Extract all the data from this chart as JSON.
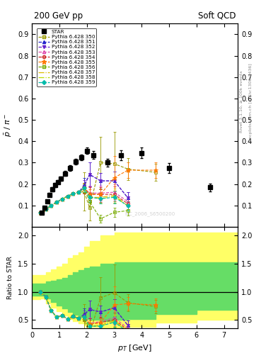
{
  "title_left": "200 GeV pp",
  "title_right": "Soft QCD",
  "ylabel_main": "$\\bar{p}$ / $\\pi^{-}$",
  "ylabel_ratio": "Ratio to STAR",
  "xlabel": "$p_T$ [GeV]",
  "right_label": "Rivet 3.1.10, ≥ 100k events",
  "right_label2": "mcplots.cern.ch [arXiv:1306.3436]",
  "ylim_main": [
    0.0,
    0.95
  ],
  "ylim_ratio": [
    0.35,
    2.15
  ],
  "yticks_main": [
    0.1,
    0.2,
    0.3,
    0.4,
    0.5,
    0.6,
    0.7,
    0.8,
    0.9
  ],
  "yticks_ratio": [
    0.5,
    1.0,
    1.5,
    2.0
  ],
  "xlim": [
    0.0,
    7.5
  ],
  "star_x": [
    0.35,
    0.45,
    0.55,
    0.65,
    0.75,
    0.85,
    0.95,
    1.05,
    1.2,
    1.4,
    1.6,
    1.8,
    2.0,
    2.25,
    2.75,
    3.25,
    4.0,
    5.0,
    6.5
  ],
  "star_y": [
    0.065,
    0.09,
    0.12,
    0.15,
    0.175,
    0.195,
    0.21,
    0.225,
    0.25,
    0.275,
    0.305,
    0.325,
    0.355,
    0.335,
    0.3,
    0.335,
    0.345,
    0.275,
    0.185
  ],
  "star_yerr": [
    0.005,
    0.006,
    0.007,
    0.008,
    0.009,
    0.009,
    0.009,
    0.01,
    0.011,
    0.012,
    0.013,
    0.014,
    0.015,
    0.018,
    0.018,
    0.022,
    0.025,
    0.022,
    0.018
  ],
  "band_x": [
    0.0,
    0.3,
    0.5,
    0.7,
    0.9,
    1.1,
    1.3,
    1.5,
    1.7,
    1.9,
    2.1,
    2.5,
    3.0,
    3.5,
    4.5,
    6.0,
    7.5
  ],
  "band_yellow_low": [
    0.87,
    0.88,
    0.8,
    0.72,
    0.65,
    0.58,
    0.52,
    0.48,
    0.44,
    0.4,
    0.38,
    0.35,
    0.35,
    0.38,
    0.45,
    0.5,
    0.5
  ],
  "band_yellow_high": [
    1.3,
    1.3,
    1.35,
    1.4,
    1.45,
    1.5,
    1.6,
    1.65,
    1.7,
    1.8,
    1.9,
    2.0,
    2.05,
    2.05,
    2.05,
    2.05,
    2.05
  ],
  "band_green_low": [
    0.93,
    0.93,
    0.88,
    0.82,
    0.76,
    0.7,
    0.64,
    0.59,
    0.55,
    0.52,
    0.5,
    0.48,
    0.5,
    0.52,
    0.6,
    0.68,
    0.68
  ],
  "band_green_high": [
    1.15,
    1.15,
    1.18,
    1.2,
    1.22,
    1.25,
    1.3,
    1.35,
    1.38,
    1.42,
    1.45,
    1.5,
    1.52,
    1.52,
    1.52,
    1.52,
    1.52
  ],
  "pythia_lines": [
    {
      "label": "Pythia 6.428 350",
      "color": "#999900",
      "linestyle": "--",
      "marker": "s",
      "markerfacecolor": "none",
      "x": [
        0.3,
        0.5,
        0.7,
        0.9,
        1.1,
        1.3,
        1.5,
        1.7,
        1.9,
        2.1,
        2.5,
        3.0,
        3.5,
        4.5
      ],
      "y": [
        0.065,
        0.082,
        0.1,
        0.116,
        0.13,
        0.144,
        0.155,
        0.161,
        0.165,
        0.09,
        0.3,
        0.295,
        0.27,
        0.255
      ],
      "yerr": [
        0.002,
        0.003,
        0.003,
        0.004,
        0.004,
        0.005,
        0.005,
        0.006,
        0.09,
        0.06,
        0.12,
        0.15,
        0.05,
        0.04
      ]
    },
    {
      "label": "Pythia 6.428 351",
      "color": "#2222cc",
      "linestyle": "--",
      "marker": "^",
      "markerfacecolor": "#2222cc",
      "x": [
        0.3,
        0.5,
        0.7,
        0.9,
        1.1,
        1.3,
        1.5,
        1.7,
        1.9,
        2.1,
        2.5,
        3.0,
        3.5
      ],
      "y": [
        0.065,
        0.082,
        0.1,
        0.116,
        0.13,
        0.144,
        0.155,
        0.161,
        0.195,
        0.245,
        0.215,
        0.215,
        0.135
      ],
      "yerr": [
        0.002,
        0.003,
        0.003,
        0.004,
        0.004,
        0.005,
        0.005,
        0.006,
        0.035,
        0.055,
        0.038,
        0.045,
        0.028
      ]
    },
    {
      "label": "Pythia 6.428 352",
      "color": "#6622cc",
      "linestyle": "--",
      "marker": "v",
      "markerfacecolor": "#6622cc",
      "x": [
        0.3,
        0.5,
        0.7,
        0.9,
        1.1,
        1.3,
        1.5,
        1.7,
        1.9,
        2.1,
        2.5,
        3.0,
        3.5
      ],
      "y": [
        0.065,
        0.082,
        0.1,
        0.116,
        0.13,
        0.144,
        0.155,
        0.161,
        0.188,
        0.245,
        0.215,
        0.215,
        0.135
      ],
      "yerr": [
        0.002,
        0.003,
        0.003,
        0.004,
        0.004,
        0.005,
        0.005,
        0.006,
        0.03,
        0.055,
        0.038,
        0.045,
        0.028
      ]
    },
    {
      "label": "Pythia 6.428 353",
      "color": "#dd44aa",
      "linestyle": "--",
      "marker": "^",
      "markerfacecolor": "none",
      "x": [
        0.3,
        0.5,
        0.7,
        0.9,
        1.1,
        1.3,
        1.5,
        1.7,
        1.9,
        2.1,
        2.5,
        3.0,
        3.5
      ],
      "y": [
        0.065,
        0.082,
        0.1,
        0.116,
        0.13,
        0.144,
        0.155,
        0.161,
        0.182,
        0.158,
        0.158,
        0.162,
        0.118
      ],
      "yerr": [
        0.002,
        0.003,
        0.003,
        0.004,
        0.004,
        0.005,
        0.005,
        0.006,
        0.025,
        0.035,
        0.035,
        0.038,
        0.025
      ]
    },
    {
      "label": "Pythia 6.428 354",
      "color": "#cc2222",
      "linestyle": "--",
      "marker": "o",
      "markerfacecolor": "none",
      "x": [
        0.3,
        0.5,
        0.7,
        0.9,
        1.1,
        1.3,
        1.5,
        1.7,
        1.9,
        2.1,
        2.5,
        3.0,
        3.5
      ],
      "y": [
        0.065,
        0.082,
        0.1,
        0.116,
        0.13,
        0.144,
        0.155,
        0.161,
        0.182,
        0.152,
        0.152,
        0.152,
        0.108
      ],
      "yerr": [
        0.002,
        0.003,
        0.003,
        0.004,
        0.004,
        0.005,
        0.005,
        0.006,
        0.025,
        0.035,
        0.035,
        0.038,
        0.025
      ]
    },
    {
      "label": "Pythia 6.428 355",
      "color": "#ff7700",
      "linestyle": "--",
      "marker": "*",
      "markerfacecolor": "#ff7700",
      "x": [
        0.3,
        0.5,
        0.7,
        0.9,
        1.1,
        1.3,
        1.5,
        1.7,
        1.9,
        2.1,
        2.5,
        3.0,
        3.5,
        4.5
      ],
      "y": [
        0.065,
        0.082,
        0.1,
        0.116,
        0.13,
        0.144,
        0.155,
        0.161,
        0.182,
        0.152,
        0.152,
        0.23,
        0.265,
        0.265
      ],
      "yerr": [
        0.002,
        0.003,
        0.003,
        0.004,
        0.004,
        0.005,
        0.005,
        0.006,
        0.02,
        0.025,
        0.025,
        0.1,
        0.038,
        0.038
      ]
    },
    {
      "label": "Pythia 6.428 356",
      "color": "#77aa00",
      "linestyle": "--",
      "marker": "s",
      "markerfacecolor": "none",
      "x": [
        0.3,
        0.5,
        0.7,
        0.9,
        1.1,
        1.3,
        1.5,
        1.7,
        1.9,
        2.1,
        2.5,
        3.0,
        3.5
      ],
      "y": [
        0.065,
        0.082,
        0.1,
        0.116,
        0.13,
        0.144,
        0.155,
        0.161,
        0.182,
        0.118,
        0.038,
        0.068,
        0.076
      ],
      "yerr": [
        0.002,
        0.003,
        0.003,
        0.004,
        0.004,
        0.005,
        0.005,
        0.006,
        0.022,
        0.028,
        0.018,
        0.022,
        0.022
      ]
    },
    {
      "label": "Pythia 6.428 357",
      "color": "#ddbb00",
      "linestyle": "-.",
      "marker": "None",
      "markerfacecolor": "#ddbb00",
      "x": [
        0.3,
        0.5,
        0.7,
        0.9,
        1.1,
        1.3,
        1.5,
        1.7,
        1.9,
        2.1,
        2.5,
        3.0,
        3.5
      ],
      "y": [
        0.065,
        0.082,
        0.1,
        0.116,
        0.13,
        0.144,
        0.155,
        0.161,
        0.182,
        0.138,
        0.138,
        0.148,
        0.098
      ],
      "yerr": [
        0.002,
        0.003,
        0.003,
        0.004,
        0.004,
        0.005,
        0.005,
        0.006,
        0.018,
        0.025,
        0.025,
        0.03,
        0.022
      ]
    },
    {
      "label": "Pythia 6.428 358",
      "color": "#bbdd00",
      "linestyle": "-.",
      "marker": "None",
      "markerfacecolor": "#bbdd00",
      "x": [
        0.3,
        0.5,
        0.7,
        0.9,
        1.1,
        1.3,
        1.5,
        1.7,
        1.9,
        2.1,
        2.5,
        3.0,
        3.5
      ],
      "y": [
        0.065,
        0.082,
        0.1,
        0.116,
        0.13,
        0.144,
        0.155,
        0.161,
        0.182,
        0.138,
        0.132,
        0.142,
        0.098
      ],
      "yerr": [
        0.002,
        0.003,
        0.003,
        0.004,
        0.004,
        0.005,
        0.005,
        0.006,
        0.018,
        0.022,
        0.022,
        0.028,
        0.022
      ]
    },
    {
      "label": "Pythia 6.428 359",
      "color": "#00bbaa",
      "linestyle": "--",
      "marker": "D",
      "markerfacecolor": "#00bbaa",
      "x": [
        0.3,
        0.5,
        0.7,
        0.9,
        1.1,
        1.3,
        1.5,
        1.7,
        1.9,
        2.1,
        2.5,
        3.0,
        3.5
      ],
      "y": [
        0.065,
        0.082,
        0.1,
        0.116,
        0.13,
        0.144,
        0.155,
        0.161,
        0.182,
        0.138,
        0.132,
        0.138,
        0.098
      ],
      "yerr": [
        0.002,
        0.003,
        0.003,
        0.004,
        0.004,
        0.005,
        0.005,
        0.006,
        0.018,
        0.022,
        0.022,
        0.028,
        0.022
      ]
    }
  ]
}
